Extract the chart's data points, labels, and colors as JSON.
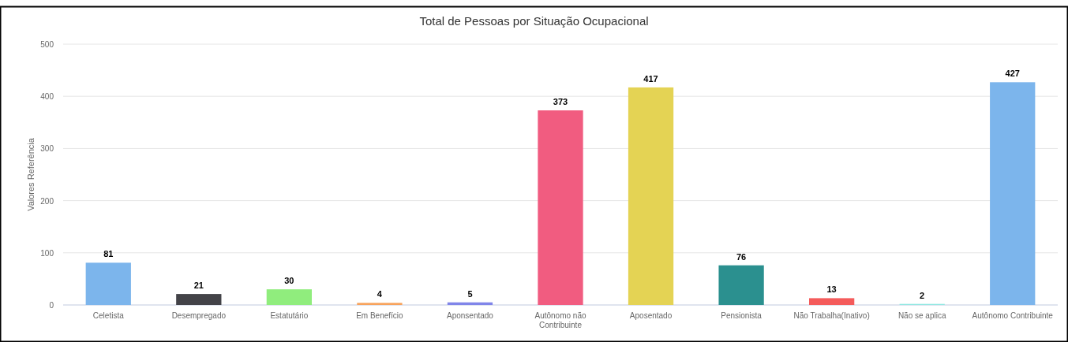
{
  "chart_data": {
    "type": "bar",
    "title": "Total de Pessoas por Situação Ocupacional",
    "ylabel": "Valores Referência",
    "categories": [
      "Celetista",
      "Desempregado",
      "Estatutário",
      "Em Benefício",
      "Aponsentado",
      "Autônomo não Contribuinte",
      "Aposentado",
      "Pensionista",
      "Não Trabalha(Inativo)",
      "Não se aplica",
      "Autônomo Contribuinte"
    ],
    "values": [
      81,
      21,
      30,
      4,
      5,
      373,
      417,
      76,
      13,
      2,
      427
    ],
    "colors": [
      "#7cb5ec",
      "#434348",
      "#90ed7d",
      "#f7a35c",
      "#8085e9",
      "#f15c80",
      "#e4d354",
      "#2b908f",
      "#f45b5b",
      "#91e8e1",
      "#7cb5ec"
    ],
    "ylim": [
      0,
      500
    ],
    "yticks": [
      0,
      100,
      200,
      300,
      400,
      500
    ],
    "grid": "y",
    "data_labels": true
  }
}
